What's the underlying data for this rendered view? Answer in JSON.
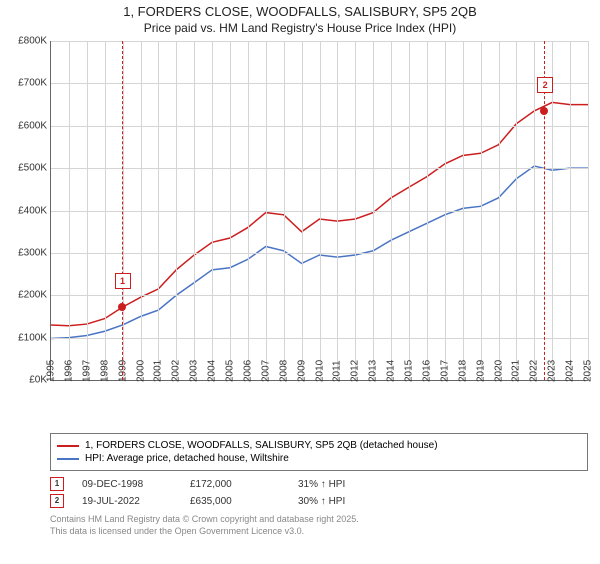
{
  "title": "1, FORDERS CLOSE, WOODFALLS, SALISBURY, SP5 2QB",
  "subtitle": "Price paid vs. HM Land Registry's House Price Index (HPI)",
  "chart": {
    "type": "line",
    "ylabel_prefix": "£",
    "ylabel_suffix": "K",
    "ylim": [
      0,
      800
    ],
    "ytick_step": 100,
    "x_years": [
      1995,
      1996,
      1997,
      1998,
      1999,
      2000,
      2001,
      2002,
      2003,
      2004,
      2005,
      2006,
      2007,
      2008,
      2009,
      2010,
      2011,
      2012,
      2013,
      2014,
      2015,
      2016,
      2017,
      2018,
      2019,
      2020,
      2021,
      2022,
      2023,
      2024,
      2025
    ],
    "background_color": "#ffffff",
    "grid_color": "#d5d5d5",
    "axis_color": "#666666",
    "series1": {
      "label": "1, FORDERS CLOSE, WOODFALLS, SALISBURY, SP5 2QB (detached house)",
      "color": "#cc1e1e",
      "line_width": 1.5,
      "values_by_year": {
        "1995": 130,
        "1996": 128,
        "1997": 132,
        "1998": 145,
        "1999": 172,
        "2000": 195,
        "2001": 215,
        "2002": 260,
        "2003": 295,
        "2004": 325,
        "2005": 335,
        "2006": 360,
        "2007": 395,
        "2008": 390,
        "2009": 350,
        "2010": 380,
        "2011": 375,
        "2012": 380,
        "2013": 395,
        "2014": 430,
        "2015": 455,
        "2016": 480,
        "2017": 510,
        "2018": 530,
        "2019": 535,
        "2020": 555,
        "2021": 605,
        "2022": 635,
        "2023": 655,
        "2024": 650,
        "2025": 650
      }
    },
    "series2": {
      "label": "HPI: Average price, detached house, Wiltshire",
      "color": "#4a74c5",
      "line_width": 1.5,
      "values_by_year": {
        "1995": 98,
        "1996": 100,
        "1997": 105,
        "1998": 115,
        "1999": 130,
        "2000": 150,
        "2001": 165,
        "2002": 200,
        "2003": 230,
        "2004": 260,
        "2005": 265,
        "2006": 285,
        "2007": 315,
        "2008": 305,
        "2009": 275,
        "2010": 295,
        "2011": 290,
        "2012": 295,
        "2013": 305,
        "2014": 330,
        "2015": 350,
        "2016": 370,
        "2017": 390,
        "2018": 405,
        "2019": 410,
        "2020": 430,
        "2021": 475,
        "2022": 505,
        "2023": 495,
        "2024": 500,
        "2025": 500
      }
    },
    "markers": [
      {
        "index": 1,
        "year": 1998.94,
        "value": 172,
        "color": "#cc1e1e"
      },
      {
        "index": 2,
        "year": 2022.55,
        "value": 635,
        "color": "#cc1e1e"
      }
    ]
  },
  "legend": {
    "row1": {
      "color": "#cc1e1e"
    },
    "row2": {
      "color": "#4a74c5"
    }
  },
  "notes": [
    {
      "index": "1",
      "date": "09-DEC-1998",
      "price": "£172,000",
      "note": "31% ↑ HPI",
      "color": "#cc1e1e"
    },
    {
      "index": "2",
      "date": "19-JUL-2022",
      "price": "£635,000",
      "note": "30% ↑ HPI",
      "color": "#cc1e1e"
    }
  ],
  "disclaimer": {
    "line1": "Contains HM Land Registry data © Crown copyright and database right 2025.",
    "line2": "This data is licensed under the Open Government Licence v3.0."
  }
}
